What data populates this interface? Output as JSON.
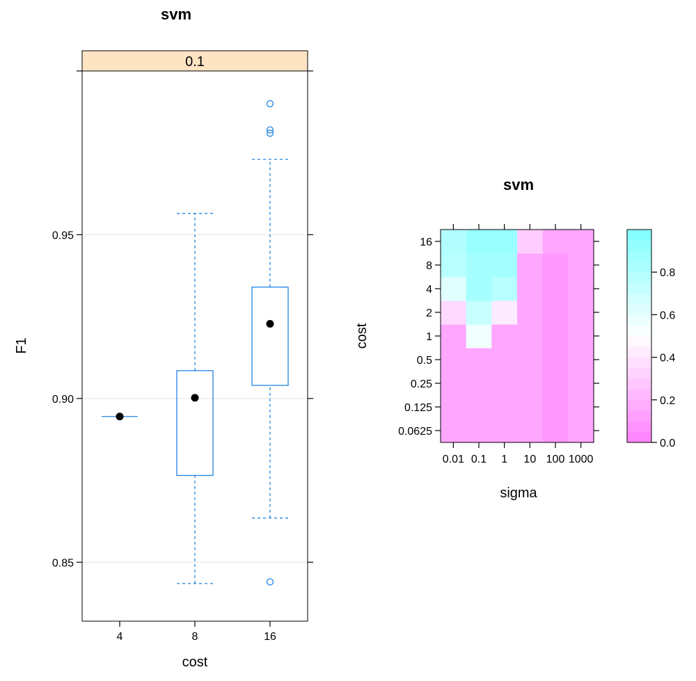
{
  "chart_data": [
    {
      "type": "box",
      "title": "svm",
      "panel_label": "0.1",
      "xlabel": "cost",
      "ylabel": "F1",
      "categories": [
        "4",
        "8",
        "16"
      ],
      "ylim": [
        0.832,
        1.0
      ],
      "yticks": [
        0.85,
        0.9,
        0.95
      ],
      "ytick_labels": [
        "0.85",
        "0.90",
        "0.95"
      ],
      "grid": true,
      "boxes": [
        {
          "category": "4",
          "whisker_low": 0.8945,
          "q1": 0.8945,
          "median": 0.8945,
          "q3": 0.8945,
          "whisker_high": 0.8945,
          "outliers": []
        },
        {
          "category": "8",
          "whisker_low": 0.8435,
          "q1": 0.8765,
          "median": 0.9002,
          "q3": 0.9085,
          "whisker_high": 0.9565,
          "outliers": []
        },
        {
          "category": "16",
          "whisker_low": 0.8635,
          "q1": 0.904,
          "median": 0.9228,
          "q3": 0.934,
          "whisker_high": 0.973,
          "outliers": [
            0.844,
            0.981,
            0.982,
            0.99
          ]
        }
      ],
      "colors": {
        "box": "#1F84E0",
        "median_dot": "#000000",
        "strip": "#FFE4C4",
        "grid": "#E6E6E6"
      }
    },
    {
      "type": "heatmap",
      "title": "svm",
      "xlabel": "sigma",
      "ylabel": "cost",
      "x": [
        "0.01",
        "0.1",
        "1",
        "10",
        "100",
        "1000"
      ],
      "y": [
        "0.0625",
        "0.125",
        "0.25",
        "0.5",
        "1",
        "2",
        "4",
        "8",
        "16"
      ],
      "colorbar_ticks": [
        0.0,
        0.2,
        0.4,
        0.6,
        0.8
      ],
      "colorbar_tick_labels": [
        "0.0",
        "0.2",
        "0.4",
        "0.6",
        "0.8"
      ],
      "colorbar_range": [
        0.0,
        1.0
      ],
      "colors": {
        "low": "#FF80FF",
        "mid": "#FFFFFF",
        "high": "#80FFFF"
      },
      "values": [
        [
          0.15,
          0.15,
          0.15,
          0.15,
          0.09,
          0.15
        ],
        [
          0.15,
          0.15,
          0.15,
          0.15,
          0.09,
          0.15
        ],
        [
          0.15,
          0.15,
          0.15,
          0.15,
          0.09,
          0.15
        ],
        [
          0.15,
          0.15,
          0.15,
          0.15,
          0.09,
          0.15
        ],
        [
          0.15,
          0.55,
          0.15,
          0.15,
          0.09,
          0.15
        ],
        [
          0.35,
          0.72,
          0.42,
          0.15,
          0.09,
          0.15
        ],
        [
          0.62,
          0.85,
          0.78,
          0.15,
          0.09,
          0.15
        ],
        [
          0.78,
          0.85,
          0.85,
          0.15,
          0.09,
          0.15
        ],
        [
          0.8,
          0.9,
          0.9,
          0.3,
          0.15,
          0.15
        ]
      ]
    }
  ]
}
